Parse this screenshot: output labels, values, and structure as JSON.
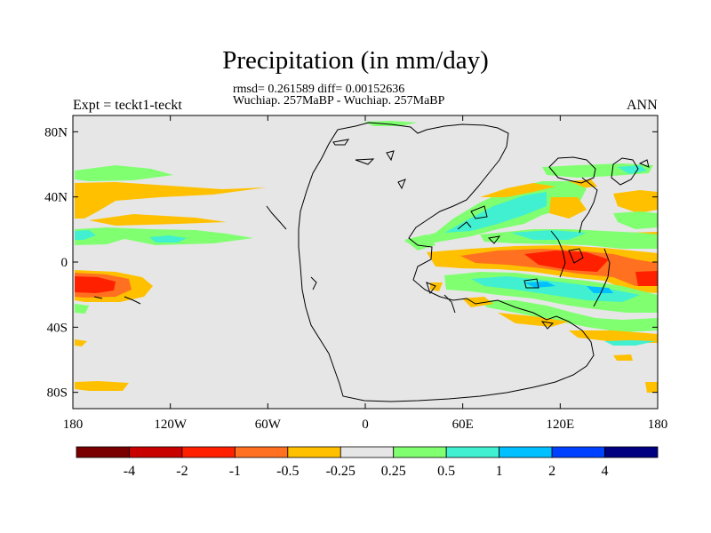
{
  "title": "Precipitation (in mm/day)",
  "stats_line1": "rmsd= 0.261589 diff= 0.00152636",
  "stats_line2": "Wuchiap. 257MaBP - Wuchiap. 257MaBP",
  "left_label": "Expt = teckt1-teckt",
  "right_label": "ANN",
  "map": {
    "projection": "cylindrical equidistant",
    "lat_range": [
      -90,
      90
    ],
    "lon_range": [
      -180,
      180
    ],
    "lat_ticks": [
      {
        "value": 80,
        "label": "80N"
      },
      {
        "value": 40,
        "label": "40N"
      },
      {
        "value": 0,
        "label": "0"
      },
      {
        "value": -40,
        "label": "40S"
      },
      {
        "value": -80,
        "label": "80S"
      }
    ],
    "lon_ticks": [
      {
        "value": -180,
        "label": "180"
      },
      {
        "value": -120,
        "label": "120W"
      },
      {
        "value": -60,
        "label": "60W"
      },
      {
        "value": 0,
        "label": "0"
      },
      {
        "value": 60,
        "label": "60E"
      },
      {
        "value": 120,
        "label": "120E"
      },
      {
        "value": 180,
        "label": "180"
      }
    ],
    "background_color": "#e6e6e6"
  },
  "colorbar": {
    "colors": [
      "#7a0000",
      "#c80000",
      "#ff2000",
      "#ff7020",
      "#ffc000",
      "#e6e6e6",
      "#80ff70",
      "#40f0d0",
      "#00c0ff",
      "#0040ff",
      "#000080"
    ],
    "labels": [
      "-4",
      "-2",
      "-1",
      "-0.5",
      "-0.25",
      "0.25",
      "0.5",
      "1",
      "2",
      "4"
    ]
  }
}
